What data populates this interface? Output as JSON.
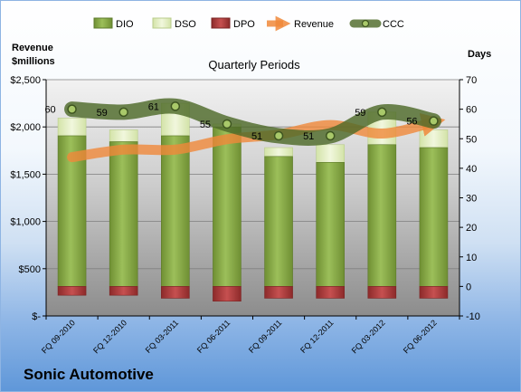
{
  "company": "Sonic Automotive",
  "chart_data": {
    "type": "bar",
    "title": "Quarterly Periods",
    "left_axis_label": [
      "Revenue",
      "$millions"
    ],
    "right_axis_label": "Days",
    "categories": [
      "FQ 09-2010",
      "FQ 12-2010",
      "FQ 03-2011",
      "FQ 06-2011",
      "FQ 09-2011",
      "FQ 12-2011",
      "FQ 03-2012",
      "FQ 06-2012"
    ],
    "left_axis": {
      "ylim": [
        0,
        2500
      ],
      "ticks": [
        0,
        500,
        1000,
        1500,
        2000,
        2500
      ],
      "tick_labels": [
        "$-",
        "$500",
        "$1,000",
        "$1,500",
        "$2,000",
        "$2,500"
      ]
    },
    "right_axis": {
      "ylim": [
        -10,
        70
      ],
      "ticks": [
        -10,
        0,
        10,
        20,
        30,
        40,
        50,
        60,
        70
      ]
    },
    "legend": [
      "DIO",
      "DSO",
      "DPO",
      "Revenue",
      "CCC"
    ],
    "legend_position": "top",
    "series": [
      {
        "name": "DIO",
        "axis": "right",
        "color": "#88a848",
        "values": [
          51,
          49,
          51,
          54,
          44,
          42,
          48,
          47
        ]
      },
      {
        "name": "DSO",
        "axis": "right",
        "color": "#e2edc4",
        "values": [
          6,
          4,
          11,
          1,
          3,
          6,
          11,
          6
        ]
      },
      {
        "name": "DPO",
        "axis": "right",
        "color": "#b03a3a",
        "values": [
          -3,
          -3,
          -4,
          -5,
          -4,
          -4,
          -4,
          -4
        ]
      },
      {
        "name": "Revenue",
        "axis": "left",
        "color": "#f0883a",
        "values": [
          1680,
          1760,
          1760,
          1870,
          1920,
          2020,
          1930,
          2050
        ]
      },
      {
        "name": "CCC",
        "axis": "right",
        "color": "#4e6a2a",
        "values": [
          60,
          59,
          61,
          55,
          51,
          51,
          59,
          56
        ]
      }
    ],
    "grid": true
  }
}
